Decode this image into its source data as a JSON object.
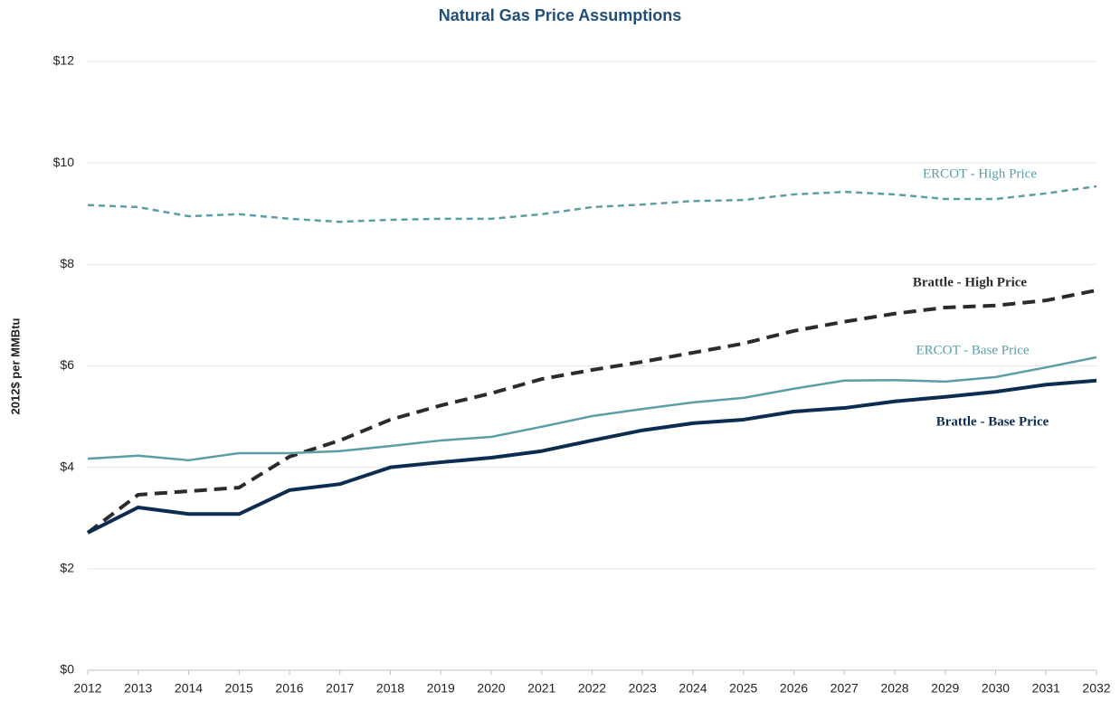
{
  "chart_data": {
    "type": "line",
    "title": "Natural Gas Price Assumptions",
    "y_label": "2012$ per MMBtu",
    "categories": [
      "2012",
      "2013",
      "2014",
      "2015",
      "2016",
      "2017",
      "2018",
      "2019",
      "2020",
      "2021",
      "2022",
      "2023",
      "2024",
      "2025",
      "2026",
      "2027",
      "2028",
      "2029",
      "2030",
      "2031",
      "2032"
    ],
    "series": [
      {
        "name": "ERCOT - High Price",
        "color": "#5b9ea6",
        "dashed": true,
        "values": [
          9.17,
          9.13,
          8.95,
          8.99,
          8.9,
          8.84,
          8.88,
          8.9,
          8.9,
          8.99,
          9.13,
          9.18,
          9.25,
          9.27,
          9.38,
          9.43,
          9.38,
          9.29,
          9.29,
          9.4,
          9.54
        ]
      },
      {
        "name": "Brattle - High Price",
        "color": "#2b2b2b",
        "dashed": true,
        "values": [
          2.71,
          3.46,
          3.53,
          3.6,
          4.21,
          4.53,
          4.94,
          5.22,
          5.46,
          5.74,
          5.92,
          6.08,
          6.26,
          6.44,
          6.69,
          6.87,
          7.03,
          7.15,
          7.19,
          7.29,
          7.49
        ]
      },
      {
        "name": "ERCOT - Base Price",
        "color": "#5b9ea6",
        "dashed": false,
        "values": [
          4.17,
          4.23,
          4.14,
          4.28,
          4.28,
          4.32,
          4.42,
          4.53,
          4.6,
          4.8,
          5.01,
          5.15,
          5.28,
          5.37,
          5.55,
          5.71,
          5.72,
          5.69,
          5.78,
          5.97,
          6.17
        ]
      },
      {
        "name": "Brattle - Base Price",
        "color": "#0d2d50",
        "dashed": false,
        "values": [
          2.71,
          3.21,
          3.08,
          3.08,
          3.55,
          3.67,
          4.0,
          4.1,
          4.19,
          4.32,
          4.53,
          4.73,
          4.87,
          4.94,
          5.1,
          5.17,
          5.3,
          5.39,
          5.49,
          5.63,
          5.71
        ]
      }
    ],
    "ylim": [
      0,
      12
    ],
    "yticks": [
      {
        "value": 0,
        "label": "$0"
      },
      {
        "value": 2,
        "label": "$2"
      },
      {
        "value": 4,
        "label": "$4"
      },
      {
        "value": 6,
        "label": "$6"
      },
      {
        "value": 8,
        "label": "$8"
      },
      {
        "value": 10,
        "label": "$10"
      },
      {
        "value": 12,
        "label": "$12"
      }
    ],
    "grid": true
  }
}
